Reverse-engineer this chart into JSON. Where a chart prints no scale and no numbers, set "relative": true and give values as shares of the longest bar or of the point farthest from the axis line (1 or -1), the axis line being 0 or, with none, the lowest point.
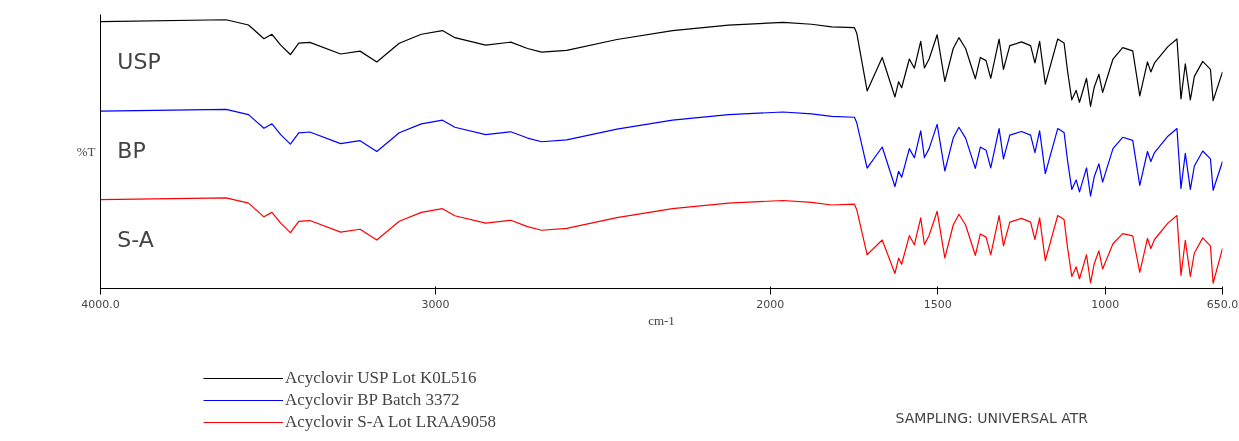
{
  "chart_data": {
    "type": "line",
    "relative": true,
    "xlabel": "cm-1",
    "ylabel": "%T",
    "xlim": [
      4000,
      650
    ],
    "xticks": [
      {
        "value": 4000,
        "label": "4000.0"
      },
      3000,
      2000,
      1500,
      1000,
      {
        "value": 650,
        "label": "650.0"
      }
    ],
    "x": [
      4000,
      3625,
      3558,
      3512,
      3488,
      3462,
      3433,
      3408,
      3375,
      3283,
      3225,
      3175,
      3108,
      3042,
      2979,
      2942,
      2850,
      2775,
      2725,
      2683,
      2608,
      2458,
      2292,
      2125,
      1962,
      1877,
      1817,
      1749,
      1742,
      1711,
      1666,
      1628,
      1617,
      1608,
      1585,
      1570,
      1551,
      1540,
      1526,
      1502,
      1479,
      1454,
      1437,
      1417,
      1388,
      1373,
      1356,
      1342,
      1317,
      1304,
      1285,
      1250,
      1223,
      1210,
      1196,
      1179,
      1142,
      1123,
      1113,
      1100,
      1087,
      1077,
      1056,
      1044,
      1033,
      1019,
      1008,
      977,
      948,
      918,
      897,
      874,
      864,
      853,
      813,
      786,
      774,
      761,
      746,
      734,
      709,
      686,
      678,
      650
    ],
    "series": [
      {
        "name": "Acyclovir USP Lot K0L516",
        "color": "#000000",
        "values": [
          0.993,
          1.0,
          0.98,
          0.928,
          0.945,
          0.904,
          0.868,
          0.911,
          0.914,
          0.87,
          0.881,
          0.84,
          0.911,
          0.945,
          0.959,
          0.932,
          0.904,
          0.915,
          0.891,
          0.877,
          0.884,
          0.925,
          0.959,
          0.98,
          0.99,
          0.983,
          0.973,
          0.97,
          0.949,
          0.73,
          0.857,
          0.707,
          0.765,
          0.742,
          0.851,
          0.816,
          0.918,
          0.817,
          0.851,
          0.943,
          0.766,
          0.891,
          0.932,
          0.891,
          0.776,
          0.857,
          0.845,
          0.778,
          0.927,
          0.812,
          0.902,
          0.916,
          0.902,
          0.836,
          0.918,
          0.756,
          0.927,
          0.912,
          0.809,
          0.696,
          0.732,
          0.687,
          0.778,
          0.671,
          0.744,
          0.793,
          0.724,
          0.851,
          0.894,
          0.882,
          0.711,
          0.84,
          0.802,
          0.836,
          0.898,
          0.927,
          0.7,
          0.833,
          0.696,
          0.785,
          0.842,
          0.812,
          0.693,
          0.802
        ]
      },
      {
        "name": "Acyclovir BP Batch 3372",
        "color": "#0000ff",
        "values": [
          0.653,
          0.66,
          0.64,
          0.588,
          0.605,
          0.564,
          0.528,
          0.571,
          0.574,
          0.53,
          0.541,
          0.5,
          0.571,
          0.605,
          0.619,
          0.592,
          0.564,
          0.575,
          0.551,
          0.537,
          0.544,
          0.585,
          0.619,
          0.64,
          0.65,
          0.643,
          0.633,
          0.63,
          0.609,
          0.437,
          0.517,
          0.367,
          0.425,
          0.402,
          0.511,
          0.476,
          0.578,
          0.477,
          0.511,
          0.603,
          0.426,
          0.551,
          0.592,
          0.551,
          0.436,
          0.517,
          0.505,
          0.438,
          0.587,
          0.472,
          0.562,
          0.576,
          0.562,
          0.496,
          0.578,
          0.416,
          0.587,
          0.572,
          0.469,
          0.356,
          0.392,
          0.347,
          0.438,
          0.331,
          0.404,
          0.453,
          0.384,
          0.511,
          0.554,
          0.542,
          0.371,
          0.5,
          0.462,
          0.496,
          0.558,
          0.587,
          0.36,
          0.493,
          0.356,
          0.445,
          0.502,
          0.472,
          0.353,
          0.462
        ]
      },
      {
        "name": "Acyclovir S-A Lot LRAA9058",
        "color": "#ff0000",
        "values": [
          0.317,
          0.324,
          0.304,
          0.252,
          0.269,
          0.228,
          0.192,
          0.235,
          0.238,
          0.194,
          0.205,
          0.164,
          0.235,
          0.269,
          0.283,
          0.256,
          0.228,
          0.239,
          0.215,
          0.201,
          0.208,
          0.249,
          0.283,
          0.304,
          0.314,
          0.307,
          0.297,
          0.3,
          0.279,
          0.108,
          0.164,
          0.037,
          0.095,
          0.072,
          0.181,
          0.146,
          0.248,
          0.147,
          0.181,
          0.273,
          0.096,
          0.221,
          0.262,
          0.221,
          0.106,
          0.187,
          0.175,
          0.108,
          0.257,
          0.142,
          0.232,
          0.246,
          0.232,
          0.166,
          0.248,
          0.086,
          0.257,
          0.242,
          0.139,
          0.026,
          0.062,
          0.017,
          0.108,
          0.001,
          0.074,
          0.123,
          0.054,
          0.15,
          0.188,
          0.18,
          0.041,
          0.17,
          0.132,
          0.166,
          0.228,
          0.257,
          0.03,
          0.163,
          0.026,
          0.115,
          0.172,
          0.142,
          0.0,
          0.132
        ]
      }
    ],
    "annotations": [
      "USP",
      "BP",
      "S-A",
      "SAMPLING:  UNIVERSAL ATR"
    ],
    "legend": "bottom left",
    "grid": false
  }
}
